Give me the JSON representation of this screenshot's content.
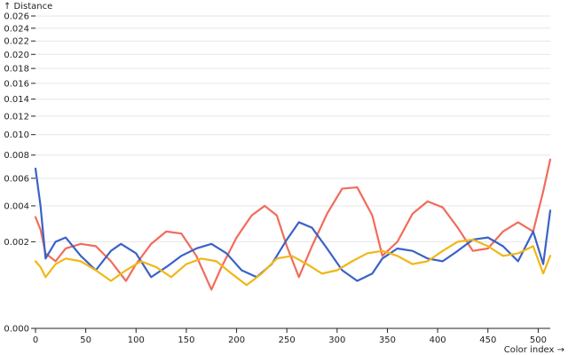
{
  "chart_data": {
    "type": "line",
    "title": "",
    "xlabel": "Color index →",
    "ylabel": "↑ Distance",
    "xlim": [
      0,
      512
    ],
    "ylim": [
      0,
      0.026
    ],
    "y_scale": "sqrt",
    "grid": true,
    "x_ticks": [
      0,
      50,
      100,
      150,
      200,
      250,
      300,
      350,
      400,
      450,
      500
    ],
    "y_ticks": [
      "0.000",
      "0.002",
      "0.004",
      "0.006",
      "0.008",
      "0.010",
      "0.012",
      "0.014",
      "0.016",
      "0.018",
      "0.020",
      "0.022",
      "0.024",
      "0.026"
    ],
    "series": [
      {
        "color": "#f26b5b",
        "x": [
          0,
          5,
          10,
          20,
          30,
          45,
          60,
          75,
          90,
          100,
          115,
          130,
          145,
          160,
          175,
          185,
          200,
          215,
          228,
          240,
          250,
          262,
          275,
          290,
          305,
          320,
          335,
          345,
          360,
          375,
          390,
          405,
          420,
          435,
          450,
          465,
          480,
          495,
          505,
          512
        ],
        "y": [
          0.0033,
          0.0026,
          0.0015,
          0.0012,
          0.0017,
          0.0019,
          0.0018,
          0.0012,
          0.0006,
          0.0011,
          0.0019,
          0.0025,
          0.0024,
          0.0014,
          0.0004,
          0.001,
          0.0022,
          0.0034,
          0.004,
          0.0034,
          0.0018,
          0.0007,
          0.0018,
          0.0035,
          0.0052,
          0.0053,
          0.0034,
          0.0014,
          0.002,
          0.0035,
          0.0043,
          0.0039,
          0.0027,
          0.0016,
          0.0017,
          0.0025,
          0.003,
          0.0025,
          0.005,
          0.0076
        ]
      },
      {
        "color": "#3a62c6",
        "x": [
          0,
          5,
          10,
          20,
          30,
          45,
          60,
          75,
          85,
          100,
          115,
          130,
          145,
          160,
          175,
          190,
          205,
          220,
          235,
          250,
          262,
          275,
          290,
          305,
          320,
          335,
          345,
          360,
          375,
          390,
          405,
          420,
          435,
          450,
          465,
          480,
          495,
          505,
          512
        ],
        "y": [
          0.0068,
          0.004,
          0.0013,
          0.002,
          0.0022,
          0.0014,
          0.0009,
          0.0016,
          0.0019,
          0.0015,
          0.0007,
          0.001,
          0.0014,
          0.0017,
          0.0019,
          0.0015,
          0.0009,
          0.0007,
          0.0011,
          0.0021,
          0.003,
          0.0027,
          0.0017,
          0.0009,
          0.0006,
          0.0008,
          0.0013,
          0.0017,
          0.0016,
          0.0013,
          0.0012,
          0.0016,
          0.0021,
          0.0022,
          0.0018,
          0.0012,
          0.0025,
          0.0011,
          0.0037
        ]
      },
      {
        "color": "#f0b716",
        "x": [
          0,
          5,
          10,
          20,
          30,
          45,
          60,
          75,
          90,
          105,
          120,
          135,
          150,
          165,
          180,
          195,
          210,
          225,
          240,
          255,
          270,
          285,
          300,
          315,
          330,
          345,
          360,
          375,
          390,
          405,
          420,
          435,
          450,
          465,
          480,
          495,
          505,
          512
        ],
        "y": [
          0.0012,
          0.001,
          0.0007,
          0.0011,
          0.0013,
          0.0012,
          0.0009,
          0.0006,
          0.0009,
          0.0012,
          0.001,
          0.0007,
          0.0011,
          0.0013,
          0.0012,
          0.0008,
          0.0005,
          0.0008,
          0.0013,
          0.0014,
          0.0011,
          0.0008,
          0.0009,
          0.0012,
          0.0015,
          0.0016,
          0.0014,
          0.0011,
          0.0012,
          0.0016,
          0.002,
          0.0021,
          0.0018,
          0.0014,
          0.0015,
          0.0018,
          0.0008,
          0.0014
        ]
      }
    ]
  }
}
